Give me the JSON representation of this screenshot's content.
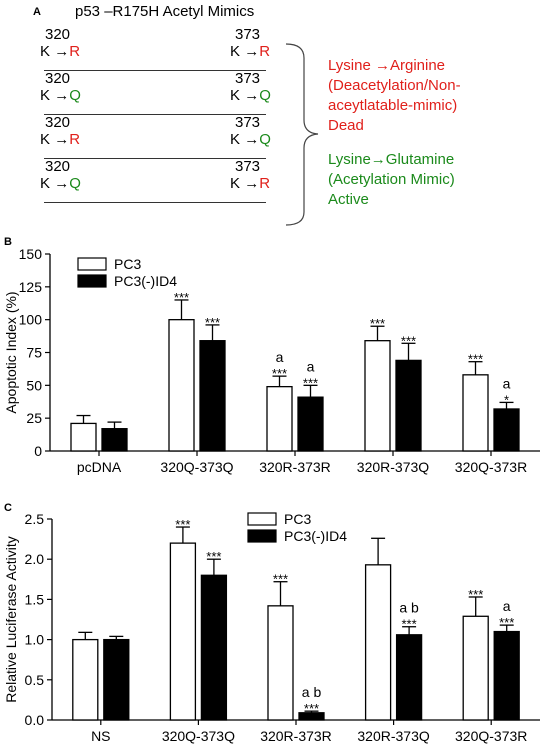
{
  "panel_a": {
    "label": "A",
    "title": "p53 –R175H Acetyl Mimics",
    "rows": [
      {
        "left_pos": "320",
        "left_from": "K",
        "left_to": "R",
        "right_pos": "373",
        "right_from": "K",
        "right_to": "R"
      },
      {
        "left_pos": "320",
        "left_from": "K",
        "left_to": "Q",
        "right_pos": "373",
        "right_from": "K",
        "right_to": "Q"
      },
      {
        "left_pos": "320",
        "left_from": "K",
        "left_to": "R",
        "right_pos": "373",
        "right_from": "K",
        "right_to": "Q"
      },
      {
        "left_pos": "320",
        "left_from": "K",
        "left_to": "Q",
        "right_pos": "373",
        "right_from": "K",
        "right_to": "R"
      }
    ],
    "arrow": "→",
    "legend_red": [
      "Lysine →Arginine",
      "(Deacetylation/Non-",
      "aceytlatable-mimic)",
      "Dead"
    ],
    "legend_green": [
      "Lysine→Glutamine",
      "(Acetylation Mimic)",
      "Active"
    ],
    "colors": {
      "red": "#e0201b",
      "green": "#1b8a1b"
    }
  },
  "chart_data": [
    {
      "panel": "B",
      "type": "bar",
      "ylabel": "Apoptotic Index (%)",
      "ylim": [
        0,
        150
      ],
      "yticks": [
        0,
        25,
        50,
        75,
        100,
        125,
        150
      ],
      "categories": [
        "pcDNA",
        "320Q-373Q",
        "320R-373R",
        "320R-373Q",
        "320Q-373R"
      ],
      "series": [
        {
          "name": "PC3",
          "fill": "#ffffff",
          "values": [
            21,
            100,
            49,
            84,
            58
          ],
          "errors": [
            6,
            15,
            8,
            11,
            10
          ],
          "annotations": [
            "",
            "***",
            "a\n***",
            "***",
            "***"
          ]
        },
        {
          "name": "PC3(-)ID4",
          "fill": "#000000",
          "values": [
            17,
            84,
            41,
            69,
            32
          ],
          "errors": [
            5,
            12,
            9,
            13,
            5
          ],
          "annotations": [
            "",
            "***",
            "a\n***",
            "***",
            "a\n*"
          ]
        }
      ],
      "legend_position": "top-left"
    },
    {
      "panel": "C",
      "type": "bar",
      "ylabel": "Relative Luciferase Activity",
      "ylim": [
        0,
        2.5
      ],
      "yticks": [
        "0.0",
        "0.5",
        "1.0",
        "1.5",
        "2.0",
        "2.5"
      ],
      "categories": [
        "NS",
        "320Q-373Q",
        "320R-373R",
        "320R-373Q",
        "320Q-373R"
      ],
      "series": [
        {
          "name": "PC3",
          "fill": "#ffffff",
          "values": [
            1.0,
            2.2,
            1.42,
            1.93,
            1.29
          ],
          "errors": [
            0.09,
            0.2,
            0.3,
            0.33,
            0.24
          ],
          "annotations": [
            "",
            "***",
            "***",
            "",
            "***"
          ]
        },
        {
          "name": "PC3(-)ID4",
          "fill": "#000000",
          "values": [
            1.0,
            1.8,
            0.09,
            1.06,
            1.1
          ],
          "errors": [
            0.04,
            0.2,
            0.02,
            0.1,
            0.08
          ],
          "annotations": [
            "",
            "***",
            "a b\n***",
            "a b\n***",
            "a\n***"
          ]
        }
      ],
      "legend_position": "top-center"
    }
  ]
}
